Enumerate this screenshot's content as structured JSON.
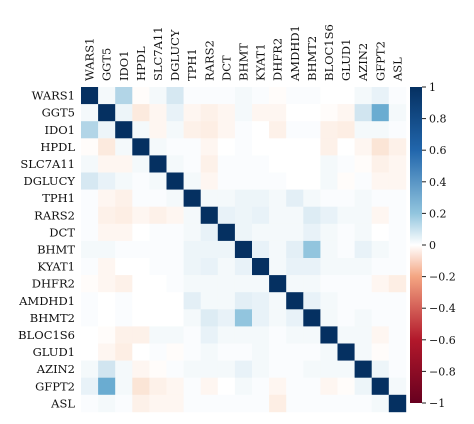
{
  "chart_data": {
    "type": "heatmap",
    "title": "",
    "xlabel": "",
    "ylabel": "",
    "labels": [
      "WARS1",
      "GGT5",
      "IDO1",
      "HPDL",
      "SLC7A11",
      "DGLUCY",
      "TPH1",
      "RARS2",
      "DCT",
      "BHMT",
      "KYAT1",
      "DHFR2",
      "AMDHD1",
      "BHMT2",
      "BLOC1S6",
      "GLUD1",
      "AZIN2",
      "GFPT2",
      "ASL"
    ],
    "values": [
      [
        1,
        0.05,
        0.3,
        -0.02,
        0.05,
        0.18,
        0.02,
        0.02,
        0.02,
        0.05,
        0.02,
        -0.02,
        0.02,
        0.02,
        0.0,
        0.0,
        0.05,
        0.1,
        0.02
      ],
      [
        0.05,
        1,
        0.08,
        -0.12,
        -0.05,
        0.1,
        -0.05,
        -0.08,
        -0.05,
        0.05,
        -0.05,
        -0.05,
        0.0,
        0.0,
        -0.02,
        -0.05,
        0.2,
        0.55,
        0.05
      ],
      [
        0.3,
        0.08,
        1,
        0.05,
        -0.05,
        0.05,
        -0.08,
        -0.1,
        -0.05,
        0.02,
        0.0,
        -0.08,
        0.02,
        0.02,
        -0.08,
        -0.1,
        0.05,
        0.05,
        0.02
      ],
      [
        -0.02,
        -0.12,
        0.05,
        1,
        0.05,
        0.02,
        0.02,
        -0.05,
        0.0,
        0.02,
        0.0,
        0.0,
        0.0,
        0.0,
        -0.08,
        0.0,
        -0.05,
        -0.15,
        -0.08
      ],
      [
        0.05,
        -0.05,
        -0.05,
        0.05,
        1,
        0.05,
        0.02,
        -0.08,
        0.02,
        0.02,
        0.02,
        0.0,
        0.0,
        0.0,
        0.05,
        0.02,
        -0.02,
        -0.08,
        -0.05
      ],
      [
        0.18,
        0.1,
        0.05,
        0.02,
        0.05,
        1,
        0.05,
        -0.05,
        0.02,
        0.02,
        0.02,
        0.02,
        0.0,
        0.0,
        0.05,
        -0.02,
        0.02,
        -0.05,
        -0.05
      ],
      [
        0.02,
        -0.05,
        -0.08,
        0.02,
        0.02,
        0.05,
        1,
        0.05,
        0.05,
        0.08,
        0.08,
        0.05,
        0.12,
        0.05,
        0.02,
        0.02,
        0.05,
        0.02,
        0.02
      ],
      [
        0.02,
        -0.08,
        -0.1,
        -0.05,
        -0.08,
        -0.05,
        0.05,
        1,
        0.1,
        0.08,
        0.1,
        0.05,
        0.05,
        0.15,
        0.1,
        0.05,
        0.05,
        -0.05,
        0.02
      ],
      [
        0.02,
        -0.05,
        -0.05,
        0.0,
        0.02,
        0.02,
        0.05,
        0.1,
        1,
        0.08,
        0.05,
        0.05,
        0.05,
        0.1,
        0.05,
        0.02,
        0.05,
        0.0,
        0.02
      ],
      [
        0.05,
        0.05,
        0.02,
        0.02,
        0.02,
        0.02,
        0.08,
        0.08,
        0.08,
        1,
        0.1,
        0.05,
        0.12,
        0.4,
        0.05,
        0.02,
        0.1,
        0.05,
        0.02
      ],
      [
        0.02,
        -0.05,
        0.0,
        0.0,
        0.02,
        0.02,
        0.08,
        0.1,
        0.05,
        0.1,
        1,
        0.05,
        0.1,
        0.1,
        0.05,
        0.05,
        0.05,
        0.02,
        0.02
      ],
      [
        -0.02,
        -0.05,
        -0.08,
        0.0,
        0.0,
        0.02,
        0.05,
        0.05,
        0.05,
        0.05,
        0.05,
        1,
        0.05,
        0.05,
        0.02,
        0.02,
        0.02,
        -0.05,
        -0.1
      ],
      [
        0.02,
        0.0,
        0.02,
        0.0,
        0.0,
        0.0,
        0.12,
        0.05,
        0.05,
        0.12,
        0.1,
        0.05,
        1,
        0.1,
        0.05,
        0.02,
        0.02,
        0.02,
        0.02
      ],
      [
        0.02,
        0.0,
        0.02,
        0.0,
        0.0,
        0.0,
        0.05,
        0.15,
        0.1,
        0.4,
        0.1,
        0.05,
        0.1,
        1,
        0.05,
        0.02,
        0.05,
        0.02,
        0.02
      ],
      [
        0.0,
        -0.02,
        -0.08,
        -0.08,
        0.05,
        0.05,
        0.02,
        0.1,
        0.05,
        0.05,
        0.05,
        0.02,
        0.05,
        0.05,
        1,
        0.05,
        0.05,
        -0.05,
        0.02
      ],
      [
        0.0,
        -0.05,
        -0.1,
        0.0,
        0.02,
        -0.02,
        0.02,
        0.05,
        0.02,
        0.02,
        0.05,
        0.02,
        0.02,
        0.02,
        0.05,
        1,
        0.05,
        -0.02,
        0.02
      ],
      [
        0.05,
        0.2,
        0.05,
        -0.05,
        -0.02,
        0.02,
        0.05,
        0.05,
        0.05,
        0.1,
        0.05,
        0.02,
        0.02,
        0.05,
        0.05,
        0.05,
        1,
        0.08,
        0.02
      ],
      [
        0.1,
        0.55,
        0.05,
        -0.15,
        -0.08,
        -0.05,
        0.02,
        -0.05,
        0.0,
        0.05,
        0.02,
        -0.05,
        0.02,
        0.02,
        -0.05,
        -0.02,
        0.08,
        1,
        0.05
      ],
      [
        0.02,
        0.05,
        0.02,
        -0.08,
        -0.05,
        -0.05,
        0.02,
        0.02,
        0.02,
        0.02,
        0.02,
        -0.1,
        0.02,
        0.02,
        0.02,
        0.02,
        0.02,
        0.05,
        1
      ]
    ],
    "color_range": [
      -1,
      1
    ],
    "colorbar_ticks": [
      "1",
      "0.8",
      "0.6",
      "0.4",
      "0.2",
      "0",
      "−0.2",
      "−0.4",
      "−0.6",
      "−0.8",
      "−1"
    ],
    "colormap": {
      "negative_end": "#67001f",
      "mid": "#ffffff",
      "positive_end": "#053061"
    },
    "grid": false,
    "legend": "colorbar-right"
  }
}
